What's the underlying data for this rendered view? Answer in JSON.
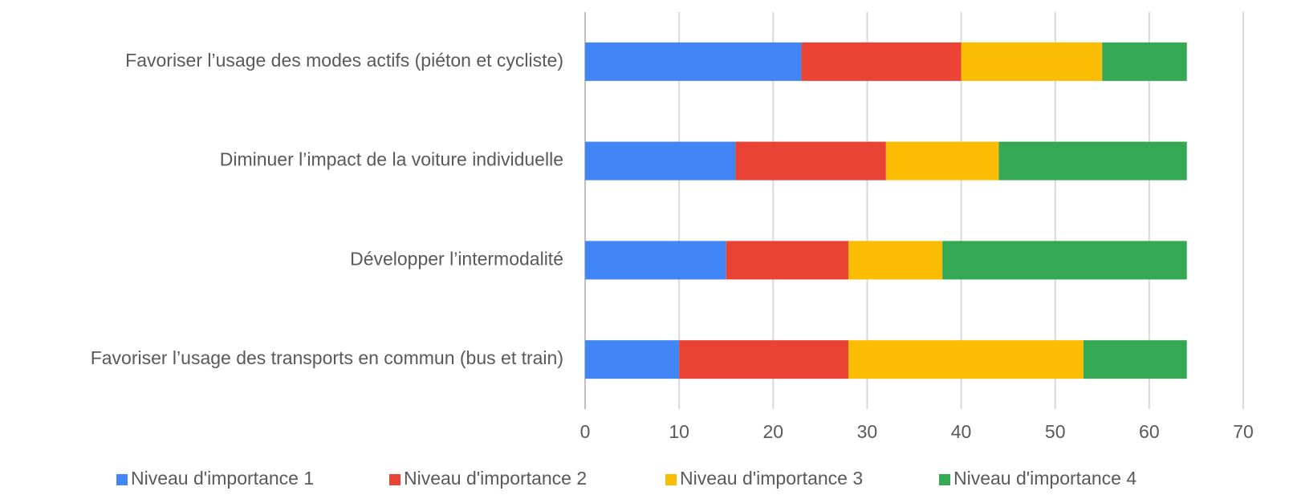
{
  "chart_data": {
    "type": "stacked_barh",
    "categories": [
      "Favoriser l’usage des modes actifs (piéton et cycliste)",
      "Diminuer l’impact de la voiture individuelle",
      "Développer l’intermodalité",
      "Favoriser l’usage des transports en commun (bus et train)"
    ],
    "series": [
      {
        "name": "Niveau d'importance 1",
        "color": "#4285f4",
        "values": [
          23,
          16,
          15,
          10
        ]
      },
      {
        "name": "Niveau d'importance 2",
        "color": "#ea4335",
        "values": [
          17,
          16,
          13,
          18
        ]
      },
      {
        "name": "Niveau d'importance 3",
        "color": "#fbbc04",
        "values": [
          15,
          12,
          10,
          25
        ]
      },
      {
        "name": "Niveau d'importance 4",
        "color": "#34a853",
        "values": [
          9,
          20,
          26,
          11
        ]
      }
    ],
    "xlim": [
      0,
      70
    ],
    "xticks": [
      0,
      10,
      20,
      30,
      40,
      50,
      60,
      70
    ],
    "grid": true,
    "legend": "bottom"
  }
}
